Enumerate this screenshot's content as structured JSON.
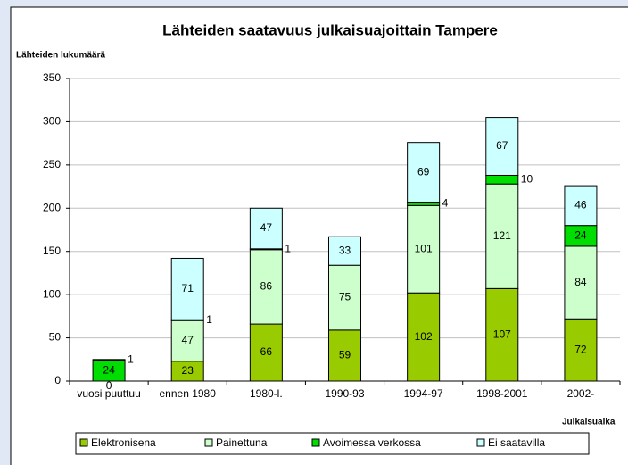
{
  "chart_data": {
    "type": "stacked-bar",
    "title": "Lähteiden saatavuus julkaisuajoittain Tampere",
    "y_label": "Lähteiden lukumäärä",
    "x_label": "Julkaisuaika",
    "categories": [
      "vuosi puuttuu",
      "ennen 1980",
      "1980-l.",
      "1990-93",
      "1994-97",
      "1998-2001",
      "2002-"
    ],
    "series": [
      {
        "name": "Elektronisena",
        "color": "#99cc00",
        "values": [
          0,
          23,
          66,
          59,
          102,
          107,
          72
        ]
      },
      {
        "name": "Painettuna",
        "color": "#ccffcc",
        "values": [
          null,
          47,
          86,
          75,
          101,
          121,
          84
        ]
      },
      {
        "name": "Avoimessa verkossa",
        "color": "#00dd00",
        "values": [
          24,
          1,
          1,
          null,
          4,
          10,
          24
        ]
      },
      {
        "name": "Ei saatavilla",
        "color": "#ccffff",
        "values": [
          1,
          71,
          47,
          33,
          69,
          67,
          46
        ]
      }
    ],
    "ylim": [
      0,
      350
    ],
    "yticks": [
      0,
      50,
      100,
      150,
      200,
      250,
      300,
      350
    ],
    "grid": true,
    "legend": "bottom"
  }
}
